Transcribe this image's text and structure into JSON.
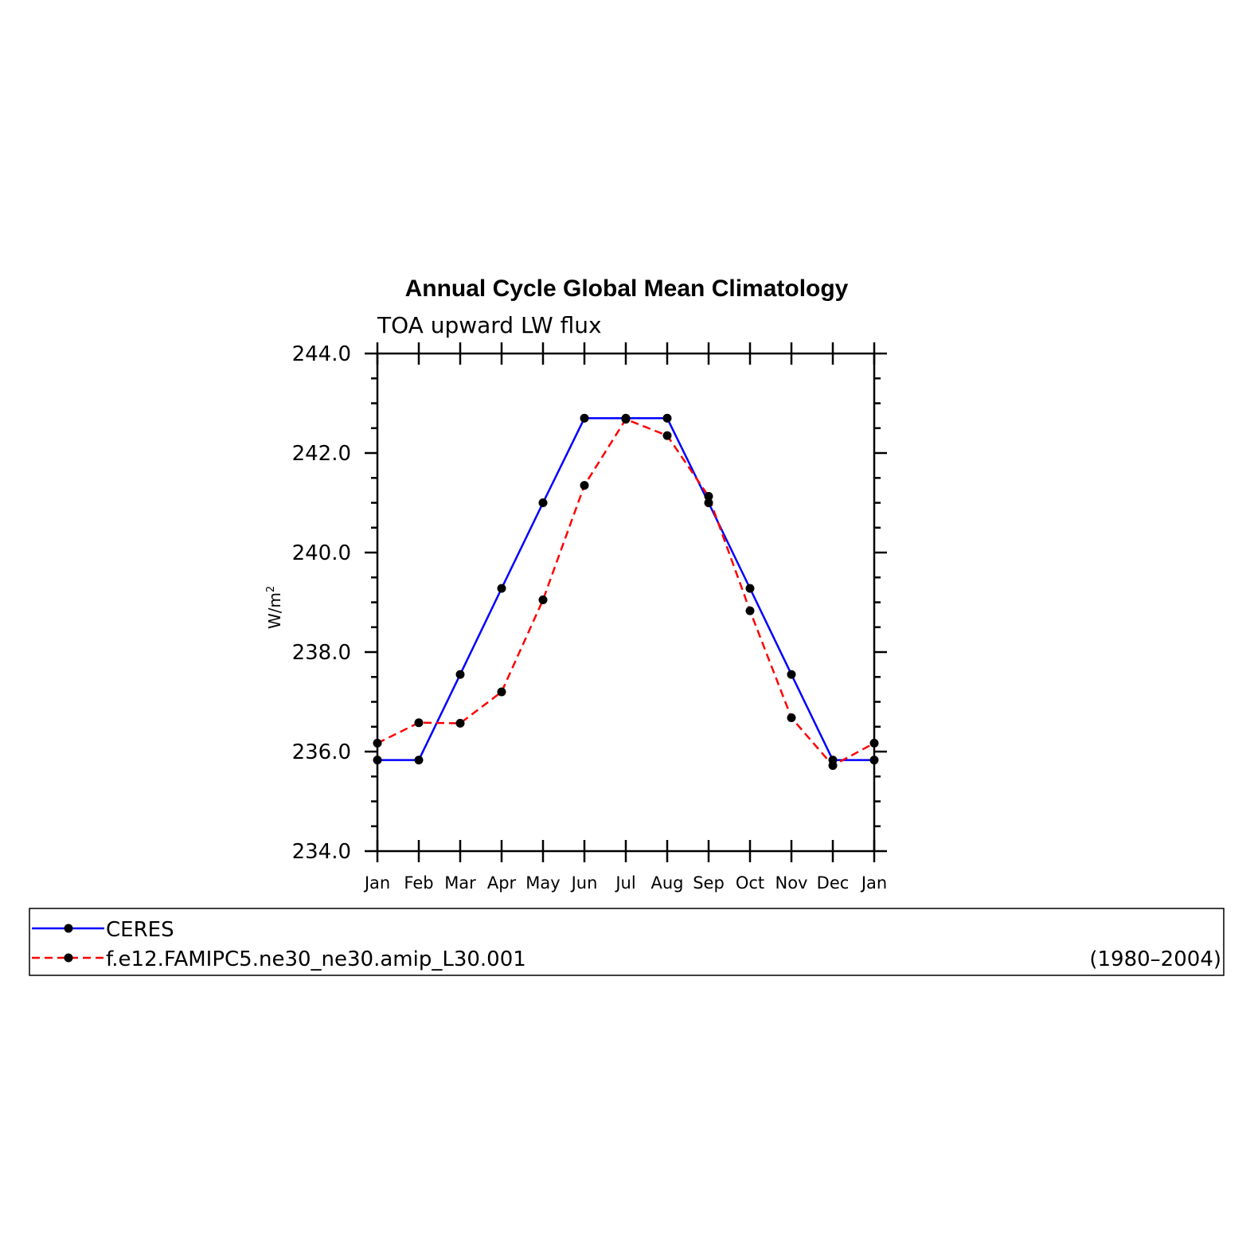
{
  "chart_data": {
    "type": "line",
    "title": "Annual Cycle Global Mean Climatology",
    "subtitle": "TOA upward LW flux",
    "ylabel": "W/m",
    "ylabel_superscript": "2",
    "ylim": [
      234,
      244
    ],
    "y_ticks": [
      "234.0",
      "236.0",
      "238.0",
      "240.0",
      "242.0",
      "244.0"
    ],
    "categories": [
      "Jan",
      "Feb",
      "Mar",
      "Apr",
      "May",
      "Jun",
      "Jul",
      "Aug",
      "Sep",
      "Oct",
      "Nov",
      "Dec",
      "Jan"
    ],
    "series": [
      {
        "name": "CERES",
        "color": "#0000ff",
        "dash": "solid",
        "marker": "filled-circle",
        "values": [
          235.83,
          235.83,
          237.55,
          239.28,
          241.0,
          242.7,
          242.7,
          242.7,
          241.0,
          239.28,
          237.55,
          235.83,
          235.83
        ]
      },
      {
        "name": "f.e12.FAMIPC5.ne30_ne30.amip_L30.001",
        "color": "#ff0000",
        "dash": "dashed",
        "marker": "filled-circle",
        "values": [
          236.17,
          236.58,
          236.57,
          237.2,
          239.05,
          241.35,
          242.68,
          242.35,
          241.13,
          238.83,
          236.68,
          235.72,
          236.17
        ]
      }
    ],
    "legend": {
      "placement": "bottom",
      "entries": [
        {
          "label": "CERES",
          "note": ""
        },
        {
          "label": "f.e12.FAMIPC5.ne30_ne30.amip_L30.001",
          "note": "(1980–2004)"
        }
      ]
    },
    "grid": false
  }
}
